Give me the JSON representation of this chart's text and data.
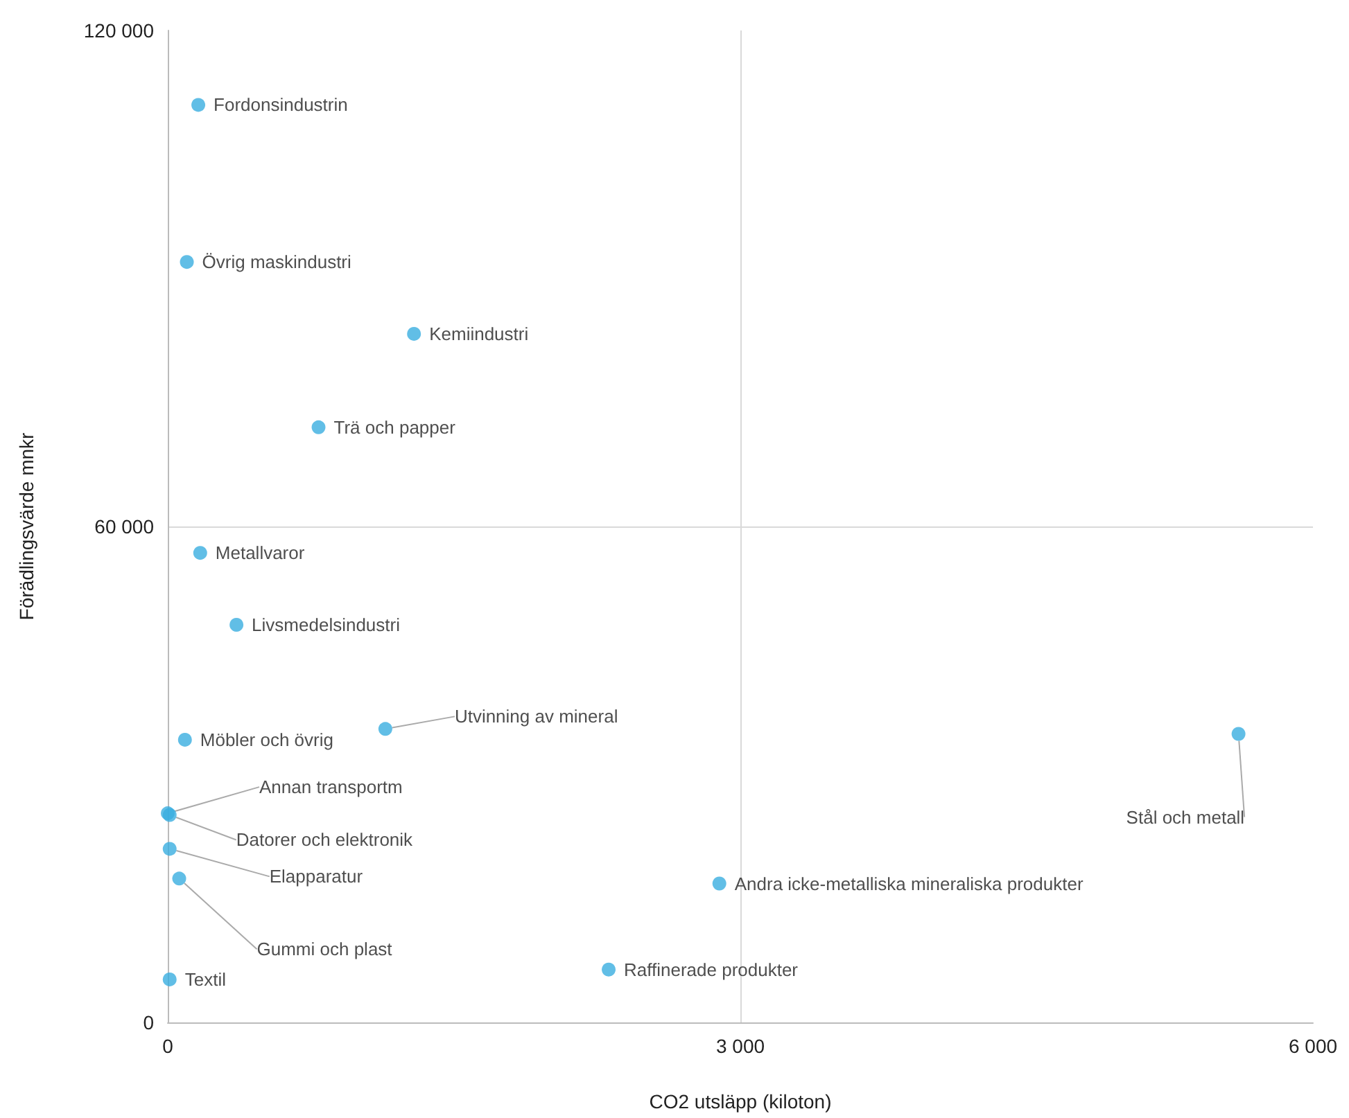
{
  "chart_data": {
    "type": "scatter",
    "xlabel": "CO2 utsläpp (kiloton)",
    "ylabel": "Förädlingsvärde mnkr",
    "x": [
      160,
      100,
      1290,
      790,
      170,
      360,
      1140,
      90,
      5610,
      0,
      10,
      10,
      60,
      2890,
      2310,
      10
    ],
    "series": [
      {
        "color": "#3aaee0",
        "values": [
          111000,
          92000,
          83300,
          72000,
          56800,
          48100,
          35500,
          34200,
          34900,
          25300,
          25100,
          21000,
          17400,
          16800,
          6400,
          5200
        ],
        "value_labels": [
          "Fordonsindustrin",
          "Övrig maskindustri",
          "Kemiindustri",
          "Trä och papper",
          "Metallvaror",
          "Livsmedelsindustri",
          "Utvinning av mineral",
          "Möbler och övrig",
          "Stål och metall",
          "Annan transportm",
          "Datorer och elektronik",
          "Elapparatur",
          "Gummi och plast",
          "Andra icke-metalliska mineraliska produkter",
          "Raffinerade produkter",
          "Textil"
        ]
      }
    ],
    "xlim": [
      0,
      6000
    ],
    "xticks": [
      0,
      {
        "value": 3000,
        "label": "3 000"
      },
      {
        "value": 6000,
        "label": "6 000"
      }
    ],
    "ylim": [
      0,
      120000
    ],
    "yticks": [
      0,
      {
        "value": 60000,
        "label": "60 000"
      },
      {
        "value": 120000,
        "label": "120 000"
      }
    ],
    "grid": true,
    "marker": "circle"
  }
}
